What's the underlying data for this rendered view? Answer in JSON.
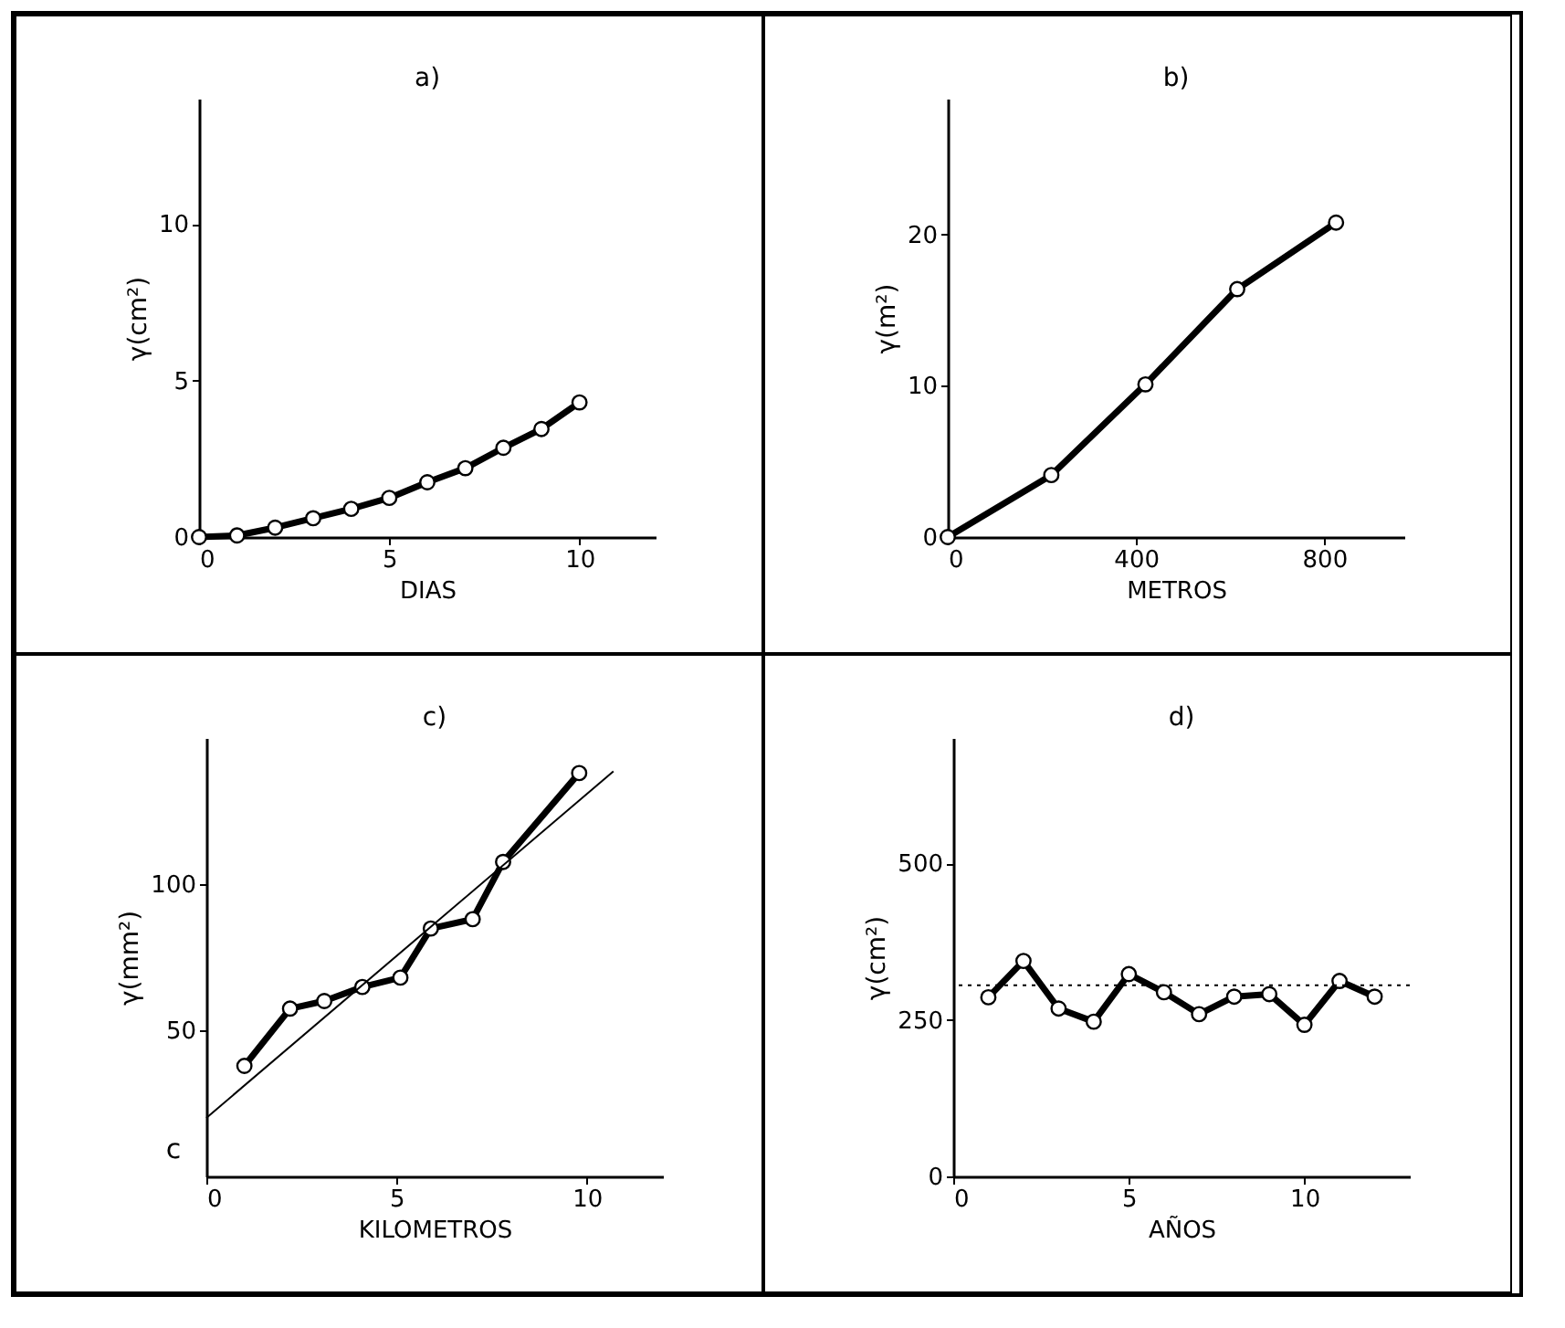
{
  "chart_data": [
    {
      "type": "line",
      "title": "a)",
      "xlabel": "DIAS",
      "ylabel": "γ(cm²)",
      "xlim": [
        0,
        12
      ],
      "ylim": [
        0,
        14
      ],
      "xticks": [
        0,
        5,
        10
      ],
      "yticks": [
        0,
        5,
        10
      ],
      "marker": "circle",
      "series": [
        {
          "color": "#000000",
          "x": [
            0,
            1,
            2,
            3,
            4,
            5,
            6,
            7,
            8,
            9,
            10
          ],
          "values": [
            0,
            0.05,
            0.3,
            0.6,
            0.9,
            1.25,
            1.75,
            2.2,
            2.85,
            3.45,
            4.3
          ]
        }
      ]
    },
    {
      "type": "line",
      "title": "b)",
      "xlabel": "METROS",
      "ylabel": "γ(m²)",
      "xlim": [
        0,
        970
      ],
      "ylim": [
        0,
        29
      ],
      "xticks": [
        0,
        400,
        800
      ],
      "yticks": [
        0,
        10,
        20
      ],
      "marker": "circle",
      "series": [
        {
          "color": "#000000",
          "x": [
            0,
            220,
            420,
            615,
            825
          ],
          "values": [
            0,
            4.1,
            10.1,
            16.4,
            20.8
          ]
        }
      ]
    },
    {
      "type": "line",
      "title": "c)",
      "xlabel": "KILOMETROS",
      "ylabel": "γ(mm²)",
      "xlim": [
        0,
        12
      ],
      "ylim": [
        0,
        150
      ],
      "xticks": [
        0,
        5,
        10
      ],
      "yticks": [
        50,
        100
      ],
      "marker": "circle",
      "annotations": [
        "c"
      ],
      "series": [
        {
          "color": "#000000",
          "x": [
            1,
            2.2,
            3.1,
            4.1,
            5.1,
            5.9,
            7,
            7.8,
            9.8
          ],
          "values": [
            37.8,
            57.4,
            60,
            64.8,
            68,
            84.8,
            88,
            107.6,
            138
          ]
        },
        {
          "type": "line",
          "marker": "none",
          "color": "#000000",
          "x": [
            0,
            10.7
          ],
          "values": [
            20,
            138.6
          ]
        }
      ]
    },
    {
      "type": "line",
      "title": "d)",
      "xlabel": "AÑOS",
      "ylabel": "γ(cm²)",
      "xlim": [
        0,
        13
      ],
      "ylim": [
        0,
        700
      ],
      "xticks": [
        0,
        5,
        10
      ],
      "yticks": [
        0,
        250,
        500
      ],
      "marker": "circle",
      "ref_lines": [
        {
          "axis": "y",
          "value": 305,
          "line_style": "dotted",
          "color": "#000000"
        }
      ],
      "series": [
        {
          "color": "#000000",
          "x": [
            1,
            2,
            3,
            4,
            5,
            6,
            7,
            8,
            9,
            10,
            11,
            12
          ],
          "values": [
            286,
            344,
            268,
            247,
            323,
            294,
            259,
            287,
            291,
            242,
            312,
            287
          ]
        }
      ]
    }
  ]
}
